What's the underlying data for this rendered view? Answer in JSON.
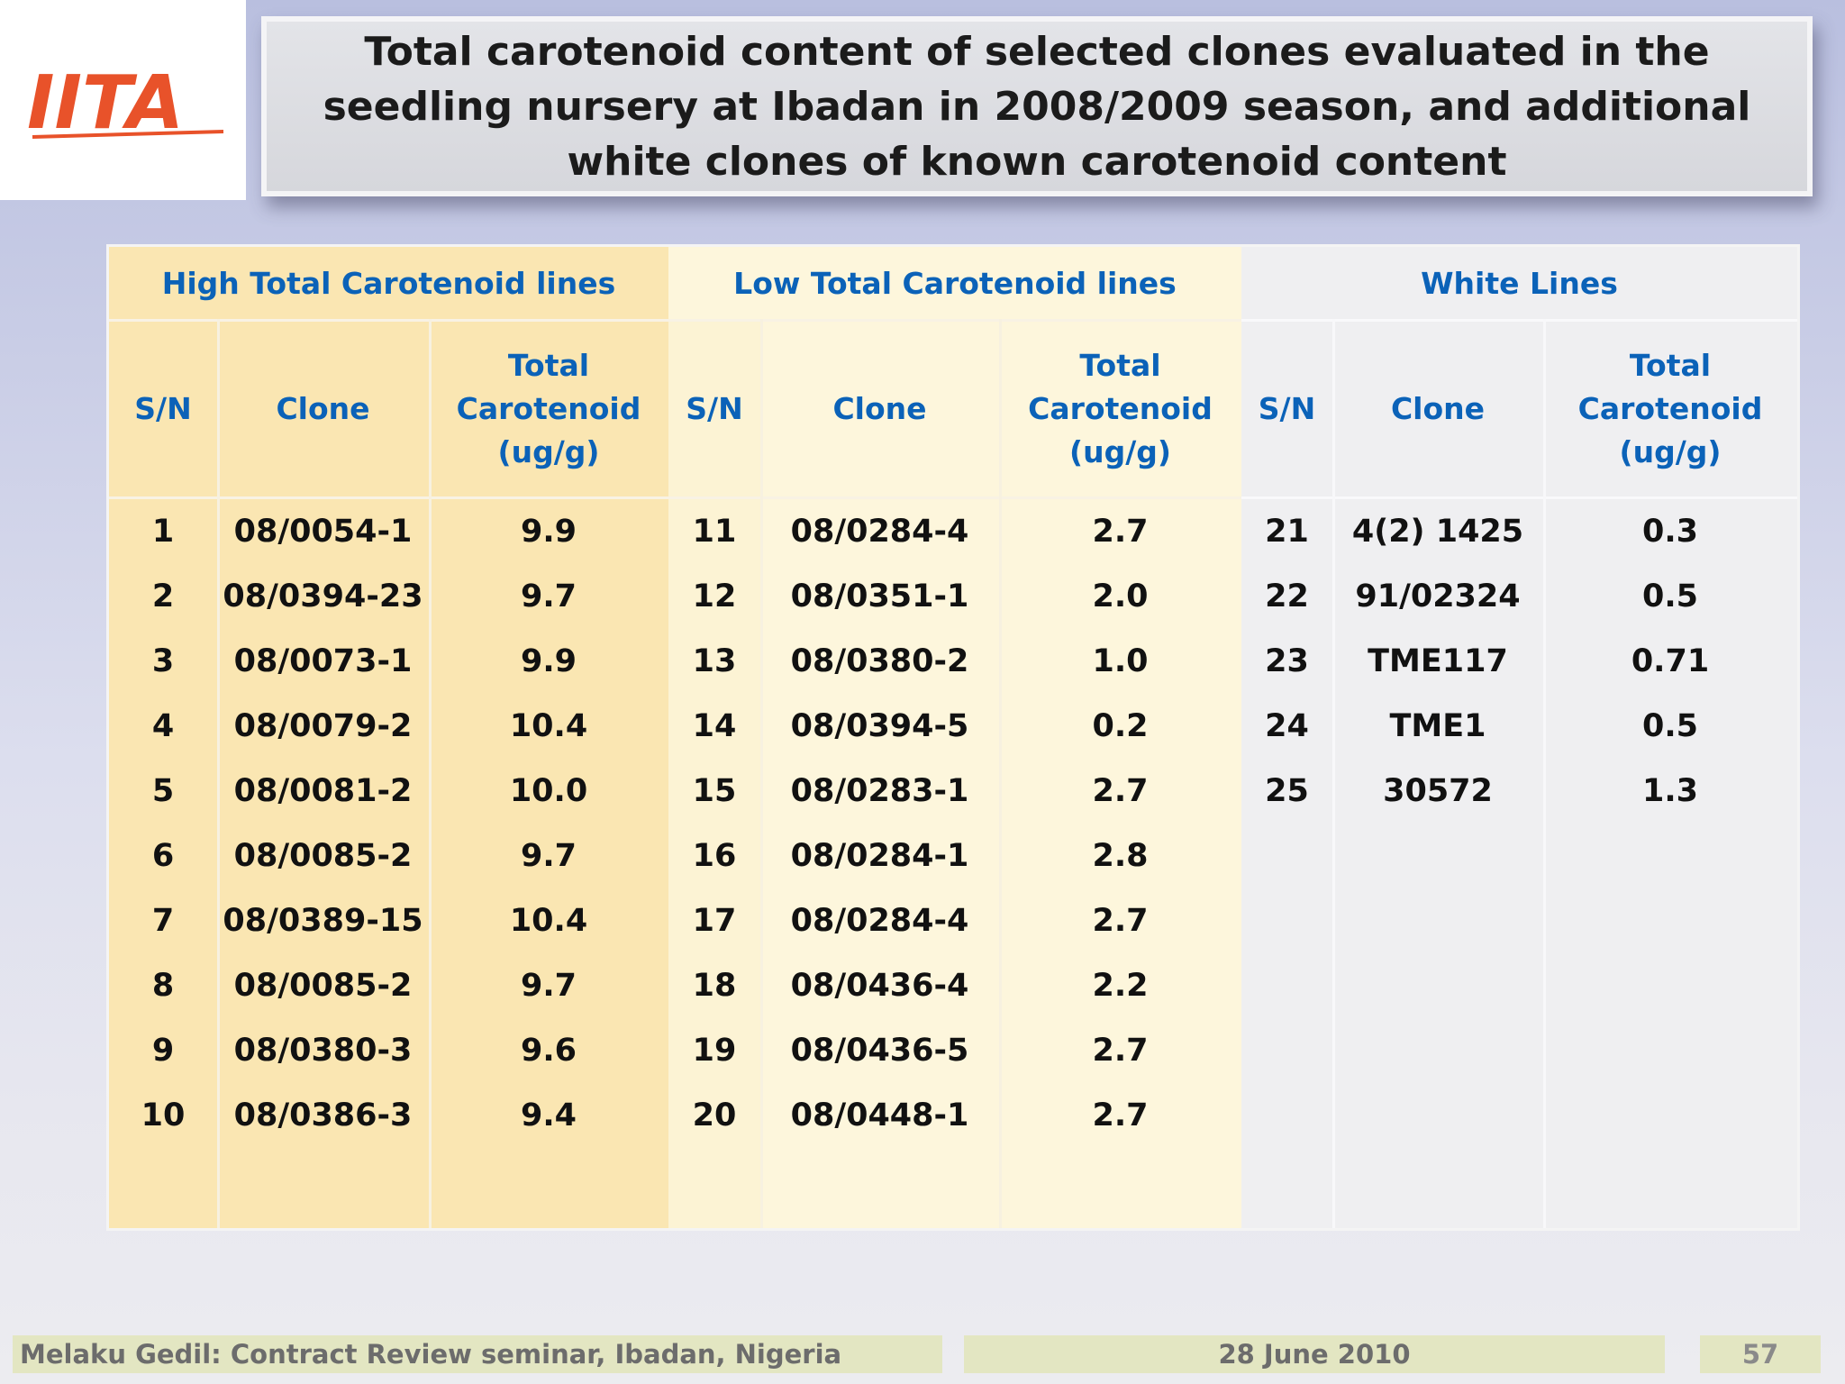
{
  "logo": {
    "text": "IITA",
    "color": "#e8522a"
  },
  "title": "Total carotenoid content of selected clones evaluated in the seedling nursery at Ibadan in 2008/2009 season, and additional white clones of known carotenoid content",
  "table": {
    "columns": {
      "sn": "S/N",
      "clone": "Clone",
      "total": "Total Carotenoid (ug/g)"
    },
    "sections": [
      {
        "title": "High Total Carotenoid lines",
        "rows": [
          {
            "sn": "1",
            "clone": "08/0054-1",
            "value": "9.9"
          },
          {
            "sn": "2",
            "clone": "08/0394-23",
            "value": "9.7"
          },
          {
            "sn": "3",
            "clone": "08/0073-1",
            "value": "9.9"
          },
          {
            "sn": "4",
            "clone": "08/0079-2",
            "value": "10.4"
          },
          {
            "sn": "5",
            "clone": "08/0081-2",
            "value": "10.0"
          },
          {
            "sn": "6",
            "clone": "08/0085-2",
            "value": "9.7"
          },
          {
            "sn": "7",
            "clone": "08/0389-15",
            "value": "10.4"
          },
          {
            "sn": "8",
            "clone": "08/0085-2",
            "value": "9.7"
          },
          {
            "sn": "9",
            "clone": "08/0380-3",
            "value": "9.6"
          },
          {
            "sn": "10",
            "clone": "08/0386-3",
            "value": "9.4"
          }
        ]
      },
      {
        "title": "Low Total Carotenoid lines",
        "rows": [
          {
            "sn": "11",
            "clone": "08/0284-4",
            "value": "2.7"
          },
          {
            "sn": "12",
            "clone": "08/0351-1",
            "value": "2.0"
          },
          {
            "sn": "13",
            "clone": "08/0380-2",
            "value": "1.0"
          },
          {
            "sn": "14",
            "clone": "08/0394-5",
            "value": "0.2"
          },
          {
            "sn": "15",
            "clone": "08/0283-1",
            "value": "2.7"
          },
          {
            "sn": "16",
            "clone": "08/0284-1",
            "value": "2.8"
          },
          {
            "sn": "17",
            "clone": "08/0284-4",
            "value": "2.7"
          },
          {
            "sn": "18",
            "clone": "08/0436-4",
            "value": "2.2"
          },
          {
            "sn": "19",
            "clone": "08/0436-5",
            "value": "2.7"
          },
          {
            "sn": "20",
            "clone": "08/0448-1",
            "value": "2.7"
          }
        ]
      },
      {
        "title": "White Lines",
        "rows": [
          {
            "sn": "21",
            "clone": "4(2) 1425",
            "value": "0.3"
          },
          {
            "sn": "22",
            "clone": "91/02324",
            "value": "0.5"
          },
          {
            "sn": "23",
            "clone": "TME117",
            "value": "0.71"
          },
          {
            "sn": "24",
            "clone": "TME1",
            "value": "0.5"
          },
          {
            "sn": "25",
            "clone": "30572",
            "value": "1.3"
          }
        ]
      }
    ]
  },
  "footer": {
    "presenter": "Melaku Gedil: Contract Review seminar,  Ibadan, Nigeria",
    "date": "28 June 2010",
    "page": "57"
  },
  "colors": {
    "header_text": "#0b62b8",
    "high_bg": "#fae6b2",
    "low_bg": "#fdf6dc",
    "white_bg": "#efeff1",
    "footer_bg": "#e3e6c2"
  }
}
